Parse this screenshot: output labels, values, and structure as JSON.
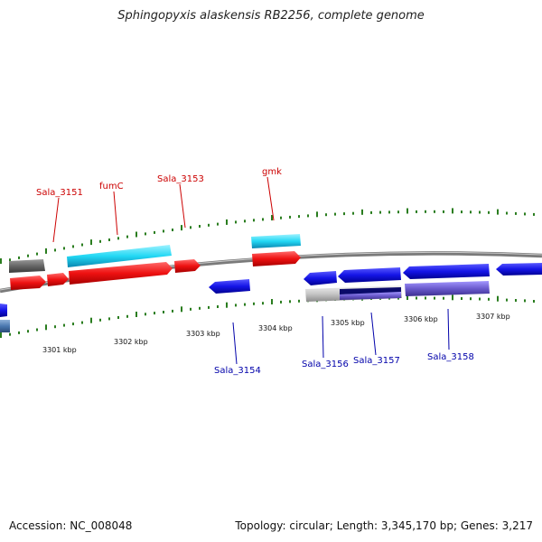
{
  "title": "Sphingopyxis alaskensis RB2256, complete genome",
  "footer": {
    "accession": "Accession: NC_008048",
    "summary": "Topology: circular; Length: 3,345,170 bp; Genes: 3,217"
  },
  "forward_gene_labels": [
    {
      "text": "Sala_3151"
    },
    {
      "text": "fumC"
    },
    {
      "text": "Sala_3153"
    },
    {
      "text": "gmk"
    }
  ],
  "reverse_gene_labels": [
    {
      "text": "Sala_3154"
    },
    {
      "text": "Sala_3156"
    },
    {
      "text": "Sala_3157"
    },
    {
      "text": "Sala_3158"
    }
  ],
  "scale_labels": [
    "3301 kbp",
    "3302 kbp",
    "3303 kbp",
    "3304 kbp",
    "3305 kbp",
    "3306 kbp",
    "3307 kbp"
  ],
  "colors": {
    "forward_label": "#cc0000",
    "reverse_label": "#0000aa",
    "forward_cds": "#ee1111",
    "reverse_cds": "#1414e6",
    "cyan_feature": "#22c6ee",
    "grey_feature": "#666666",
    "purple_feature": "#6a5acd",
    "tick": "#2a7d1f",
    "backbone": "#888888"
  }
}
